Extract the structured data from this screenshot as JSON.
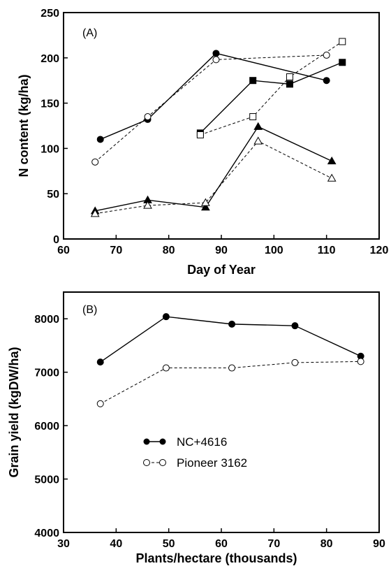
{
  "chart_data": [
    {
      "type": "line",
      "panel_label": "(A)",
      "xlabel": "Day of Year",
      "ylabel": "N content (kg/ha)",
      "xlim": [
        60,
        120
      ],
      "ylim": [
        0,
        250
      ],
      "xticks": [
        "60",
        "70",
        "80",
        "90",
        "100",
        "110",
        "120"
      ],
      "yticks": [
        "0",
        "50",
        "100",
        "150",
        "200",
        "250"
      ],
      "grid": false,
      "series": [
        {
          "marker": "filled-circle",
          "line": "solid",
          "x": [
            67,
            76,
            89,
            110
          ],
          "y": [
            110,
            132,
            205,
            175
          ]
        },
        {
          "marker": "open-circle",
          "line": "dashed",
          "x": [
            66,
            76,
            89,
            110
          ],
          "y": [
            85,
            135,
            198,
            203
          ]
        },
        {
          "marker": "filled-square",
          "line": "solid",
          "x": [
            86,
            96,
            103,
            113
          ],
          "y": [
            117,
            175,
            171,
            195
          ]
        },
        {
          "marker": "open-square",
          "line": "dashed",
          "x": [
            86,
            96,
            103,
            113
          ],
          "y": [
            115,
            135,
            179,
            218
          ]
        },
        {
          "marker": "filled-triangle",
          "line": "solid",
          "x": [
            66,
            76,
            87,
            97,
            111
          ],
          "y": [
            31,
            43,
            35,
            124,
            86
          ]
        },
        {
          "marker": "open-triangle",
          "line": "dashed",
          "x": [
            66,
            76,
            87,
            97,
            111
          ],
          "y": [
            28,
            37,
            40,
            108,
            67
          ]
        }
      ]
    },
    {
      "type": "line",
      "panel_label": "(B)",
      "xlabel": "Plants/hectare (thousands)",
      "ylabel": "Grain yield (kgDW/ha)",
      "xlim": [
        30,
        90
      ],
      "ylim": [
        4000,
        8500
      ],
      "xticks": [
        "30",
        "40",
        "50",
        "60",
        "70",
        "80",
        "90"
      ],
      "yticks": [
        "4000",
        "5000",
        "6000",
        "7000",
        "8000"
      ],
      "grid": false,
      "legend_position": "lower-left",
      "series": [
        {
          "name": "NC+4616",
          "marker": "filled-circle",
          "line": "solid",
          "x": [
            37,
            49.5,
            62,
            74,
            86.5
          ],
          "y": [
            7190,
            8040,
            7900,
            7870,
            7300
          ]
        },
        {
          "name": "Pioneer 3162",
          "marker": "open-circle",
          "line": "dashed",
          "x": [
            37,
            49.5,
            62,
            74,
            86.5
          ],
          "y": [
            6410,
            7080,
            7080,
            7180,
            7200
          ]
        }
      ]
    }
  ]
}
